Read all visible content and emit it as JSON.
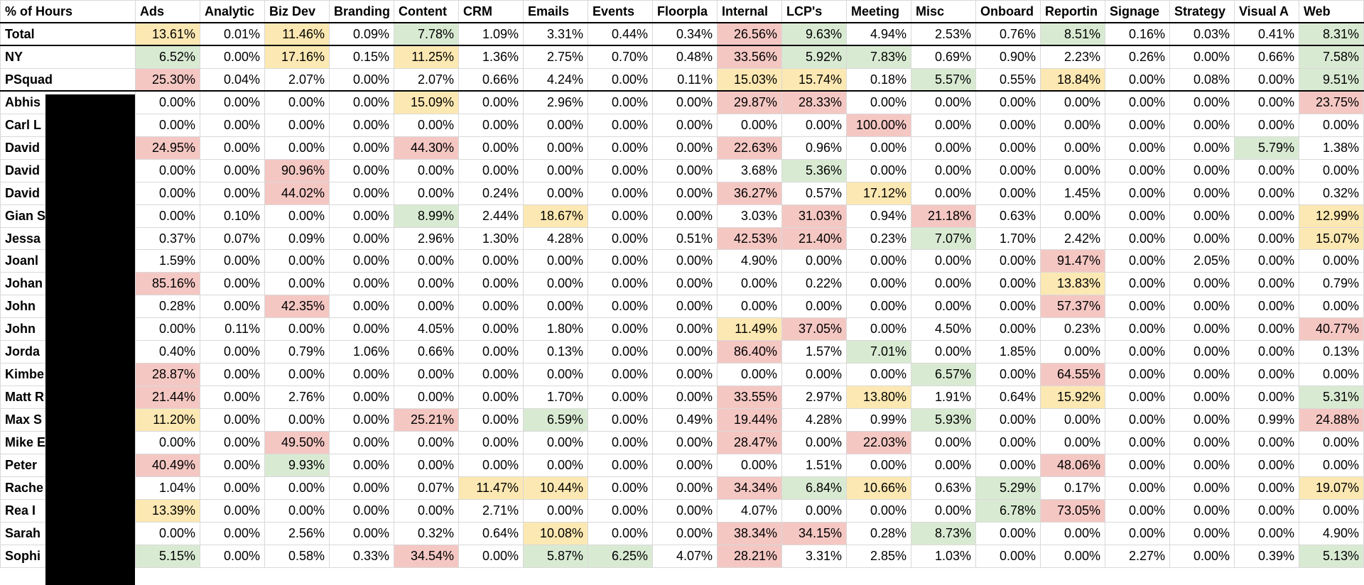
{
  "table": {
    "header": [
      "% of Hours",
      "Ads",
      "Analytic",
      "Biz Dev",
      "Branding",
      "Content",
      "CRM",
      "Emails",
      "Events",
      "Floorpla",
      "Internal",
      "LCP's",
      "Meeting",
      "Misc",
      "Onboard",
      "Reportin",
      "Signage",
      "Strategy",
      "Visual A",
      "Web"
    ],
    "rows": [
      {
        "label": "Total",
        "cells": [
          {
            "text": "13.61%",
            "fill": "#fce8b2"
          },
          "0.01%",
          {
            "text": "11.46%",
            "fill": "#fce8b2"
          },
          "0.09%",
          {
            "text": "7.78%",
            "fill": "#d9ead3"
          },
          "1.09%",
          "3.31%",
          "0.44%",
          "0.34%",
          {
            "text": "26.56%",
            "fill": "#f4c7c3"
          },
          {
            "text": "9.63%",
            "fill": "#d9ead3"
          },
          "4.94%",
          "2.53%",
          "0.76%",
          {
            "text": "8.51%",
            "fill": "#d9ead3"
          },
          "0.16%",
          "0.03%",
          "0.41%",
          {
            "text": "8.31%",
            "fill": "#d9ead3"
          }
        ]
      },
      {
        "label": "NY",
        "cells": [
          {
            "text": "6.52%",
            "fill": "#d9ead3"
          },
          "0.00%",
          {
            "text": "17.16%",
            "fill": "#fce8b2"
          },
          "0.15%",
          {
            "text": "11.25%",
            "fill": "#fce8b2"
          },
          "1.36%",
          "2.75%",
          "0.70%",
          "0.48%",
          {
            "text": "33.56%",
            "fill": "#f4c7c3"
          },
          {
            "text": "5.92%",
            "fill": "#d9ead3"
          },
          {
            "text": "7.83%",
            "fill": "#d9ead3"
          },
          "0.69%",
          "0.90%",
          "2.23%",
          "0.26%",
          "0.00%",
          "0.66%",
          {
            "text": "7.58%",
            "fill": "#d9ead3"
          }
        ]
      },
      {
        "label": "PSquad",
        "cells": [
          {
            "text": "25.30%",
            "fill": "#f4c7c3"
          },
          "0.04%",
          "2.07%",
          "0.00%",
          "2.07%",
          "0.66%",
          "4.24%",
          "0.00%",
          "0.11%",
          {
            "text": "15.03%",
            "fill": "#fce8b2"
          },
          {
            "text": "15.74%",
            "fill": "#fce8b2"
          },
          "0.18%",
          {
            "text": "5.57%",
            "fill": "#d9ead3"
          },
          "0.55%",
          {
            "text": "18.84%",
            "fill": "#fce8b2"
          },
          "0.00%",
          "0.08%",
          "0.00%",
          {
            "text": "9.51%",
            "fill": "#d9ead3"
          }
        ]
      },
      {
        "label": "Abhis",
        "cells": [
          "0.00%",
          "0.00%",
          "0.00%",
          "0.00%",
          {
            "text": "15.09%",
            "fill": "#fce8b2"
          },
          "0.00%",
          "2.96%",
          "0.00%",
          "0.00%",
          {
            "text": "29.87%",
            "fill": "#f4c7c3"
          },
          {
            "text": "28.33%",
            "fill": "#f4c7c3"
          },
          "0.00%",
          "0.00%",
          "0.00%",
          "0.00%",
          "0.00%",
          "0.00%",
          "0.00%",
          {
            "text": "23.75%",
            "fill": "#f4c7c3"
          }
        ]
      },
      {
        "label": "Carl L",
        "cells": [
          "0.00%",
          "0.00%",
          "0.00%",
          "0.00%",
          "0.00%",
          "0.00%",
          "0.00%",
          "0.00%",
          "0.00%",
          "0.00%",
          "0.00%",
          {
            "text": "100.00%",
            "fill": "#f4c7c3"
          },
          "0.00%",
          "0.00%",
          "0.00%",
          "0.00%",
          "0.00%",
          "0.00%",
          "0.00%"
        ]
      },
      {
        "label": "David",
        "cells": [
          {
            "text": "24.95%",
            "fill": "#f4c7c3"
          },
          "0.00%",
          "0.00%",
          "0.00%",
          {
            "text": "44.30%",
            "fill": "#f4c7c3"
          },
          "0.00%",
          "0.00%",
          "0.00%",
          "0.00%",
          {
            "text": "22.63%",
            "fill": "#f4c7c3"
          },
          "0.96%",
          "0.00%",
          "0.00%",
          "0.00%",
          "0.00%",
          "0.00%",
          "0.00%",
          {
            "text": "5.79%",
            "fill": "#d9ead3"
          },
          "1.38%"
        ]
      },
      {
        "label": "David",
        "cells": [
          "0.00%",
          "0.00%",
          {
            "text": "90.96%",
            "fill": "#f4c7c3"
          },
          "0.00%",
          "0.00%",
          "0.00%",
          "0.00%",
          "0.00%",
          "0.00%",
          "3.68%",
          {
            "text": "5.36%",
            "fill": "#d9ead3"
          },
          "0.00%",
          "0.00%",
          "0.00%",
          "0.00%",
          "0.00%",
          "0.00%",
          "0.00%",
          "0.00%"
        ]
      },
      {
        "label": "David",
        "cells": [
          "0.00%",
          "0.00%",
          {
            "text": "44.02%",
            "fill": "#f4c7c3"
          },
          "0.00%",
          "0.00%",
          "0.24%",
          "0.00%",
          "0.00%",
          "0.00%",
          {
            "text": "36.27%",
            "fill": "#f4c7c3"
          },
          "0.57%",
          {
            "text": "17.12%",
            "fill": "#fce8b2"
          },
          "0.00%",
          "0.00%",
          "1.45%",
          "0.00%",
          "0.00%",
          "0.00%",
          "0.32%"
        ]
      },
      {
        "label": "Gian S",
        "cells": [
          "0.00%",
          "0.10%",
          "0.00%",
          "0.00%",
          {
            "text": "8.99%",
            "fill": "#d9ead3"
          },
          "2.44%",
          {
            "text": "18.67%",
            "fill": "#fce8b2"
          },
          "0.00%",
          "0.00%",
          "3.03%",
          {
            "text": "31.03%",
            "fill": "#f4c7c3"
          },
          "0.94%",
          {
            "text": "21.18%",
            "fill": "#f4c7c3"
          },
          "0.63%",
          "0.00%",
          "0.00%",
          "0.00%",
          "0.00%",
          {
            "text": "12.99%",
            "fill": "#fce8b2"
          }
        ]
      },
      {
        "label": "Jessa",
        "cells": [
          "0.37%",
          "0.07%",
          "0.09%",
          "0.00%",
          "2.96%",
          "1.30%",
          "4.28%",
          "0.00%",
          "0.51%",
          {
            "text": "42.53%",
            "fill": "#f4c7c3"
          },
          {
            "text": "21.40%",
            "fill": "#f4c7c3"
          },
          "0.23%",
          {
            "text": "7.07%",
            "fill": "#d9ead3"
          },
          "1.70%",
          "2.42%",
          "0.00%",
          "0.00%",
          "0.00%",
          {
            "text": "15.07%",
            "fill": "#fce8b2"
          }
        ]
      },
      {
        "label": "Joanl",
        "cells": [
          "1.59%",
          "0.00%",
          "0.00%",
          "0.00%",
          "0.00%",
          "0.00%",
          "0.00%",
          "0.00%",
          "0.00%",
          "4.90%",
          "0.00%",
          "0.00%",
          "0.00%",
          "0.00%",
          {
            "text": "91.47%",
            "fill": "#f4c7c3"
          },
          "0.00%",
          "2.05%",
          "0.00%",
          "0.00%"
        ]
      },
      {
        "label": "Johan",
        "cells": [
          {
            "text": "85.16%",
            "fill": "#f4c7c3"
          },
          "0.00%",
          "0.00%",
          "0.00%",
          "0.00%",
          "0.00%",
          "0.00%",
          "0.00%",
          "0.00%",
          "0.00%",
          "0.22%",
          "0.00%",
          "0.00%",
          "0.00%",
          {
            "text": "13.83%",
            "fill": "#fce8b2"
          },
          "0.00%",
          "0.00%",
          "0.00%",
          "0.79%"
        ]
      },
      {
        "label": "John",
        "cells": [
          "0.28%",
          "0.00%",
          {
            "text": "42.35%",
            "fill": "#f4c7c3"
          },
          "0.00%",
          "0.00%",
          "0.00%",
          "0.00%",
          "0.00%",
          "0.00%",
          "0.00%",
          "0.00%",
          "0.00%",
          "0.00%",
          "0.00%",
          {
            "text": "57.37%",
            "fill": "#f4c7c3"
          },
          "0.00%",
          "0.00%",
          "0.00%",
          "0.00%"
        ]
      },
      {
        "label": "John",
        "cells": [
          "0.00%",
          "0.11%",
          "0.00%",
          "0.00%",
          "4.05%",
          "0.00%",
          "1.80%",
          "0.00%",
          "0.00%",
          {
            "text": "11.49%",
            "fill": "#fce8b2"
          },
          {
            "text": "37.05%",
            "fill": "#f4c7c3"
          },
          "0.00%",
          "4.50%",
          "0.00%",
          "0.23%",
          "0.00%",
          "0.00%",
          "0.00%",
          {
            "text": "40.77%",
            "fill": "#f4c7c3"
          }
        ]
      },
      {
        "label": "Jorda",
        "cells": [
          "0.40%",
          "0.00%",
          "0.79%",
          "1.06%",
          "0.66%",
          "0.00%",
          "0.13%",
          "0.00%",
          "0.00%",
          {
            "text": "86.40%",
            "fill": "#f4c7c3"
          },
          "1.57%",
          {
            "text": "7.01%",
            "fill": "#d9ead3"
          },
          "0.00%",
          "1.85%",
          "0.00%",
          "0.00%",
          "0.00%",
          "0.00%",
          "0.13%"
        ]
      },
      {
        "label": "Kimbe",
        "cells": [
          {
            "text": "28.87%",
            "fill": "#f4c7c3"
          },
          "0.00%",
          "0.00%",
          "0.00%",
          "0.00%",
          "0.00%",
          "0.00%",
          "0.00%",
          "0.00%",
          "0.00%",
          "0.00%",
          "0.00%",
          {
            "text": "6.57%",
            "fill": "#d9ead3"
          },
          "0.00%",
          {
            "text": "64.55%",
            "fill": "#f4c7c3"
          },
          "0.00%",
          "0.00%",
          "0.00%",
          "0.00%"
        ]
      },
      {
        "label": "Matt R",
        "cells": [
          {
            "text": "21.44%",
            "fill": "#f4c7c3"
          },
          "0.00%",
          "2.76%",
          "0.00%",
          "0.00%",
          "0.00%",
          "1.70%",
          "0.00%",
          "0.00%",
          {
            "text": "33.55%",
            "fill": "#f4c7c3"
          },
          "2.97%",
          {
            "text": "13.80%",
            "fill": "#fce8b2"
          },
          "1.91%",
          "0.64%",
          {
            "text": "15.92%",
            "fill": "#fce8b2"
          },
          "0.00%",
          "0.00%",
          "0.00%",
          {
            "text": "5.31%",
            "fill": "#d9ead3"
          }
        ]
      },
      {
        "label": "Max S",
        "cells": [
          {
            "text": "11.20%",
            "fill": "#fce8b2"
          },
          "0.00%",
          "0.00%",
          "0.00%",
          {
            "text": "25.21%",
            "fill": "#f4c7c3"
          },
          "0.00%",
          {
            "text": "6.59%",
            "fill": "#d9ead3"
          },
          "0.00%",
          "0.49%",
          {
            "text": "19.44%",
            "fill": "#f4c7c3"
          },
          "4.28%",
          "0.99%",
          {
            "text": "5.93%",
            "fill": "#d9ead3"
          },
          "0.00%",
          "0.00%",
          "0.00%",
          "0.00%",
          "0.99%",
          {
            "text": "24.88%",
            "fill": "#f4c7c3"
          }
        ]
      },
      {
        "label": "Mike E",
        "cells": [
          "0.00%",
          "0.00%",
          {
            "text": "49.50%",
            "fill": "#f4c7c3"
          },
          "0.00%",
          "0.00%",
          "0.00%",
          "0.00%",
          "0.00%",
          "0.00%",
          {
            "text": "28.47%",
            "fill": "#f4c7c3"
          },
          "0.00%",
          {
            "text": "22.03%",
            "fill": "#f4c7c3"
          },
          "0.00%",
          "0.00%",
          "0.00%",
          "0.00%",
          "0.00%",
          "0.00%",
          "0.00%"
        ]
      },
      {
        "label": "Peter",
        "cells": [
          {
            "text": "40.49%",
            "fill": "#f4c7c3"
          },
          "0.00%",
          {
            "text": "9.93%",
            "fill": "#d9ead3"
          },
          "0.00%",
          "0.00%",
          "0.00%",
          "0.00%",
          "0.00%",
          "0.00%",
          "0.00%",
          "1.51%",
          "0.00%",
          "0.00%",
          "0.00%",
          {
            "text": "48.06%",
            "fill": "#f4c7c3"
          },
          "0.00%",
          "0.00%",
          "0.00%",
          "0.00%"
        ]
      },
      {
        "label": "Rache",
        "cells": [
          "1.04%",
          "0.00%",
          "0.00%",
          "0.00%",
          "0.07%",
          {
            "text": "11.47%",
            "fill": "#fce8b2"
          },
          {
            "text": "10.44%",
            "fill": "#fce8b2"
          },
          "0.00%",
          "0.00%",
          {
            "text": "34.34%",
            "fill": "#f4c7c3"
          },
          {
            "text": "6.84%",
            "fill": "#d9ead3"
          },
          {
            "text": "10.66%",
            "fill": "#fce8b2"
          },
          "0.63%",
          {
            "text": "5.29%",
            "fill": "#d9ead3"
          },
          "0.17%",
          "0.00%",
          "0.00%",
          "0.00%",
          {
            "text": "19.07%",
            "fill": "#fce8b2"
          }
        ]
      },
      {
        "label": "Rea I",
        "cells": [
          {
            "text": "13.39%",
            "fill": "#fce8b2"
          },
          "0.00%",
          "0.00%",
          "0.00%",
          "0.00%",
          "2.71%",
          "0.00%",
          "0.00%",
          "0.00%",
          "4.07%",
          "0.00%",
          "0.00%",
          "0.00%",
          {
            "text": "6.78%",
            "fill": "#d9ead3"
          },
          {
            "text": "73.05%",
            "fill": "#f4c7c3"
          },
          "0.00%",
          "0.00%",
          "0.00%",
          "0.00%"
        ]
      },
      {
        "label": "Sarah",
        "cells": [
          "0.00%",
          "0.00%",
          "2.56%",
          "0.00%",
          "0.32%",
          "0.64%",
          {
            "text": "10.08%",
            "fill": "#fce8b2"
          },
          "0.00%",
          "0.00%",
          {
            "text": "38.34%",
            "fill": "#f4c7c3"
          },
          {
            "text": "34.15%",
            "fill": "#f4c7c3"
          },
          "0.28%",
          {
            "text": "8.73%",
            "fill": "#d9ead3"
          },
          "0.00%",
          "0.00%",
          "0.00%",
          "0.00%",
          "0.00%",
          "4.90%"
        ]
      },
      {
        "label": "Sophi",
        "cells": [
          {
            "text": "5.15%",
            "fill": "#d9ead3"
          },
          "0.00%",
          "0.58%",
          "0.33%",
          {
            "text": "34.54%",
            "fill": "#f4c7c3"
          },
          "0.00%",
          {
            "text": "5.87%",
            "fill": "#d9ead3"
          },
          {
            "text": "6.25%",
            "fill": "#d9ead3"
          },
          "4.07%",
          {
            "text": "28.21%",
            "fill": "#f4c7c3"
          },
          "3.31%",
          "2.85%",
          "1.03%",
          "0.00%",
          "0.00%",
          "2.27%",
          "0.00%",
          "0.39%",
          {
            "text": "5.13%",
            "fill": "#d9ead3"
          }
        ]
      }
    ]
  }
}
